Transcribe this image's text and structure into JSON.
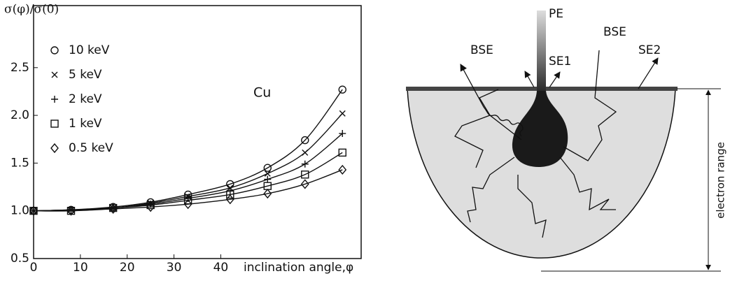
{
  "chart_data": {
    "type": "line",
    "ylabel": "σ(φ)/σ(0)",
    "xlabel": "inclination angle,φ",
    "annotation": "Cu",
    "x": [
      0,
      8,
      17,
      25,
      33,
      42,
      50,
      58,
      66
    ],
    "xlim": [
      0,
      70
    ],
    "xticks": [
      0,
      10,
      20,
      30,
      40
    ],
    "ylim": [
      0.5,
      3.15
    ],
    "yticks": [
      0.5,
      {
        "value": 1,
        "label": "1.0"
      },
      1.5,
      {
        "value": 2,
        "label": "2.0"
      },
      2.5
    ],
    "series": [
      {
        "name": "10 keV",
        "marker": "circle",
        "color": "#111111",
        "values": [
          1.0,
          1.01,
          1.04,
          1.09,
          1.17,
          1.28,
          1.45,
          1.74,
          2.27
        ]
      },
      {
        "name": "5 keV",
        "marker": "x",
        "color": "#111111",
        "values": [
          1.0,
          1.01,
          1.03,
          1.08,
          1.15,
          1.24,
          1.39,
          1.61,
          2.02
        ]
      },
      {
        "name": "2 keV",
        "marker": "plus",
        "color": "#111111",
        "values": [
          1.0,
          1.01,
          1.03,
          1.07,
          1.13,
          1.21,
          1.33,
          1.49,
          1.81
        ]
      },
      {
        "name": "1 keV",
        "marker": "square",
        "color": "#111111",
        "values": [
          1.0,
          1.0,
          1.03,
          1.06,
          1.11,
          1.17,
          1.26,
          1.38,
          1.61
        ]
      },
      {
        "name": "0.5 keV",
        "marker": "diamond",
        "color": "#111111",
        "values": [
          1.0,
          1.0,
          1.02,
          1.04,
          1.07,
          1.12,
          1.18,
          1.28,
          1.43
        ]
      }
    ]
  },
  "diagram": {
    "labels": [
      "PE",
      "BSE",
      "SE1",
      "BSE",
      "SE2",
      "electron range"
    ]
  }
}
